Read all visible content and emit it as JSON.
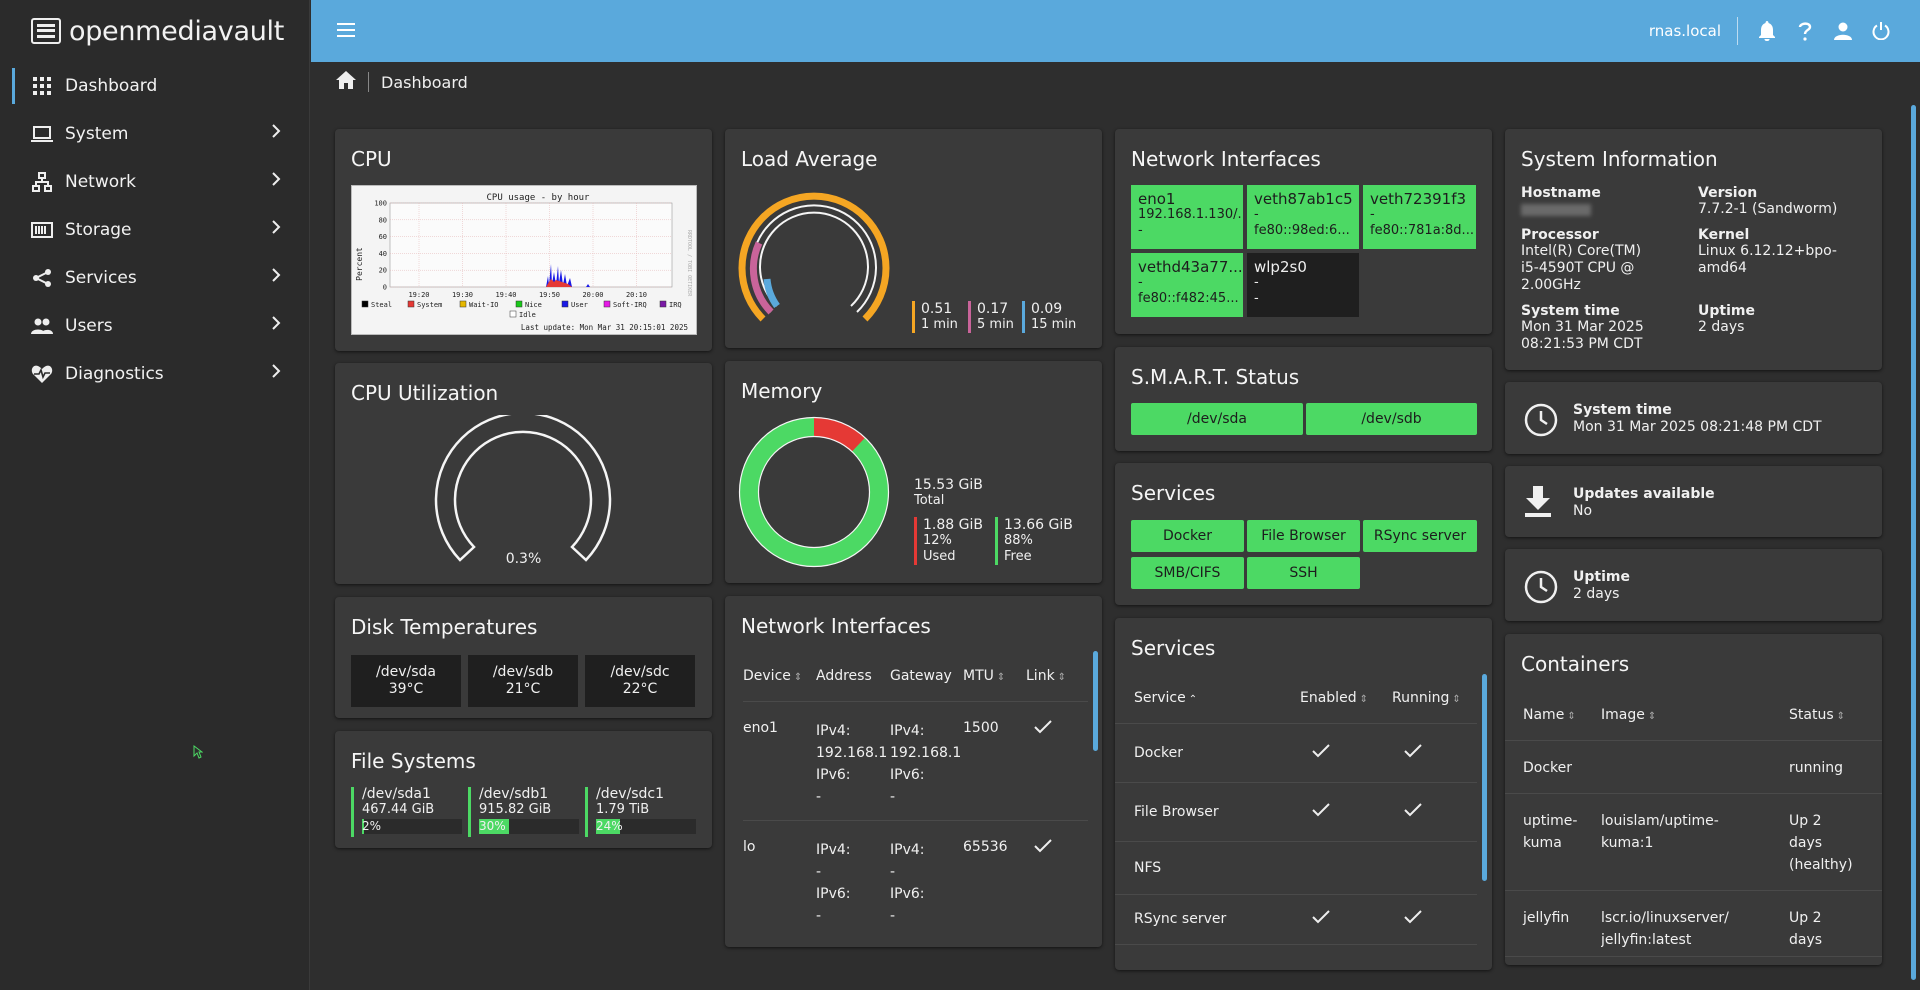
{
  "app": {
    "name": "openmediavault"
  },
  "sidebar": {
    "items": [
      {
        "label": "Dashboard"
      },
      {
        "label": "System"
      },
      {
        "label": "Network"
      },
      {
        "label": "Storage"
      },
      {
        "label": "Services"
      },
      {
        "label": "Users"
      },
      {
        "label": "Diagnostics"
      }
    ]
  },
  "topbar": {
    "hostname": "rnas.local"
  },
  "breadcrumb": {
    "page": "Dashboard"
  },
  "colors": {
    "accent": "#5aa9dc",
    "ok": "#4cd964",
    "load1": "#f5a623",
    "load5": "#c9649a",
    "load15": "#5aa9dc",
    "used": "#e53935"
  },
  "widgets": {
    "cpu": {
      "title": "CPU",
      "graph": {
        "title": "CPU usage - by hour",
        "ylabel": "Percent",
        "yticks": [
          "100",
          "80",
          "60",
          "40",
          "20",
          "0"
        ],
        "xticks": [
          "19:20",
          "19:30",
          "19:40",
          "19:50",
          "20:00",
          "20:10"
        ],
        "legend": [
          "Steal",
          "System",
          "Wait-IO",
          "Nice",
          "User",
          "Soft-IRQ",
          "IRQ",
          "Idle"
        ],
        "footer": "Last update: Mon Mar 31 20:15:01 2025",
        "side_text": "RRDTOOL / TOBI OETIKER"
      }
    },
    "load_average": {
      "title": "Load Average",
      "items": [
        {
          "value": "0.51",
          "label": "1 min"
        },
        {
          "value": "0.17",
          "label": "5 min"
        },
        {
          "value": "0.09",
          "label": "15 min"
        }
      ]
    },
    "cpu_utilization": {
      "title": "CPU Utilization",
      "value": "0.3%",
      "percent": 0.3
    },
    "memory": {
      "title": "Memory",
      "total": "15.53 GiB",
      "total_label": "Total",
      "used": {
        "value": "1.88 GiB",
        "percent": "12%",
        "label": "Used"
      },
      "free": {
        "value": "13.66 GiB",
        "percent": "88%",
        "label": "Free"
      },
      "used_fraction": 0.12
    },
    "disk_temperatures": {
      "title": "Disk Temperatures",
      "disks": [
        {
          "device": "/dev/sda",
          "temp": "39°C"
        },
        {
          "device": "/dev/sdb",
          "temp": "21°C"
        },
        {
          "device": "/dev/sdc",
          "temp": "22°C"
        }
      ]
    },
    "file_systems": {
      "title": "File Systems",
      "items": [
        {
          "device": "/dev/sda1",
          "size": "467.44 GiB",
          "used": "2%",
          "fraction": 0.02
        },
        {
          "device": "/dev/sdb1",
          "size": "915.82 GiB",
          "used": "30%",
          "fraction": 0.3
        },
        {
          "device": "/dev/sdc1",
          "size": "1.79 TiB",
          "used": "24%",
          "fraction": 0.24
        }
      ]
    },
    "network_table": {
      "title": "Network Interfaces",
      "columns": [
        "Device",
        "Address",
        "Gateway",
        "MTU",
        "Link"
      ],
      "rows": [
        {
          "device": "eno1",
          "address": [
            "IPv4:",
            "192.168.1",
            "IPv6:",
            "-"
          ],
          "gateway": [
            "IPv4:",
            "192.168.1",
            "IPv6:",
            "-"
          ],
          "mtu": "1500"
        },
        {
          "device": "lo",
          "address": [
            "IPv4:",
            "-",
            "IPv6:",
            "-"
          ],
          "gateway": [
            "IPv4:",
            "-",
            "IPv6:",
            "-"
          ],
          "mtu": "65536"
        }
      ]
    },
    "network_tiles": {
      "title": "Network Interfaces",
      "items": [
        {
          "name": "eno1",
          "l1": "192.168.1.130/...",
          "l2": "-"
        },
        {
          "name": "veth87ab1c5",
          "l1": "-",
          "l2": "fe80::98ed:6..."
        },
        {
          "name": "veth72391f3",
          "l1": "-",
          "l2": "fe80::781a:8d..."
        },
        {
          "name": "vethd43a77...",
          "l1": "-",
          "l2": "fe80::f482:45..."
        },
        {
          "name": "wlp2s0",
          "l1": "-",
          "l2": "-"
        }
      ]
    },
    "smart": {
      "title": "S.M.A.R.T. Status",
      "disks": [
        "/dev/sda",
        "/dev/sdb"
      ]
    },
    "services_tiles": {
      "title": "Services",
      "items": [
        "Docker",
        "File Browser",
        "RSync server",
        "SMB/CIFS",
        "SSH"
      ]
    },
    "services_table": {
      "title": "Services",
      "columns": [
        "Service",
        "Enabled",
        "Running"
      ],
      "rows": [
        {
          "name": "Docker",
          "enabled": true,
          "running": true
        },
        {
          "name": "File Browser",
          "enabled": true,
          "running": true
        },
        {
          "name": "NFS",
          "enabled": false,
          "running": false
        },
        {
          "name": "RSync server",
          "enabled": true,
          "running": true
        }
      ]
    },
    "system_info": {
      "title": "System Information",
      "hostname_label": "Hostname",
      "version_label": "Version",
      "version": "7.7.2-1 (Sandworm)",
      "processor_label": "Processor",
      "processor": [
        "Intel(R) Core(TM)",
        "i5-4590T CPU @",
        "2.00GHz"
      ],
      "kernel_label": "Kernel",
      "kernel": "Linux 6.12.12+bpo-amd64",
      "systime_label": "System time",
      "systime": [
        "Mon 31 Mar 2025",
        "08:21:53 PM CDT"
      ],
      "uptime_label": "Uptime",
      "uptime": "2 days"
    },
    "system_time_card": {
      "label": "System time",
      "value": "Mon 31 Mar 2025 08:21:48 PM CDT"
    },
    "updates_card": {
      "label": "Updates available",
      "value": "No"
    },
    "uptime_card": {
      "label": "Uptime",
      "value": "2 days"
    },
    "containers": {
      "title": "Containers",
      "columns": [
        "Name",
        "Image",
        "Status"
      ],
      "rows": [
        {
          "name": [
            "Docker"
          ],
          "image": [
            ""
          ],
          "status": [
            "running"
          ]
        },
        {
          "name": [
            "uptime-",
            "kuma"
          ],
          "image": [
            "louislam/uptime-",
            "kuma:1"
          ],
          "status": [
            "Up 2",
            "days",
            "(healthy)"
          ]
        },
        {
          "name": [
            "jellyfin"
          ],
          "image": [
            "lscr.io/linuxserver/",
            "jellyfin:latest"
          ],
          "status": [
            "Up 2",
            "days"
          ]
        }
      ]
    }
  }
}
